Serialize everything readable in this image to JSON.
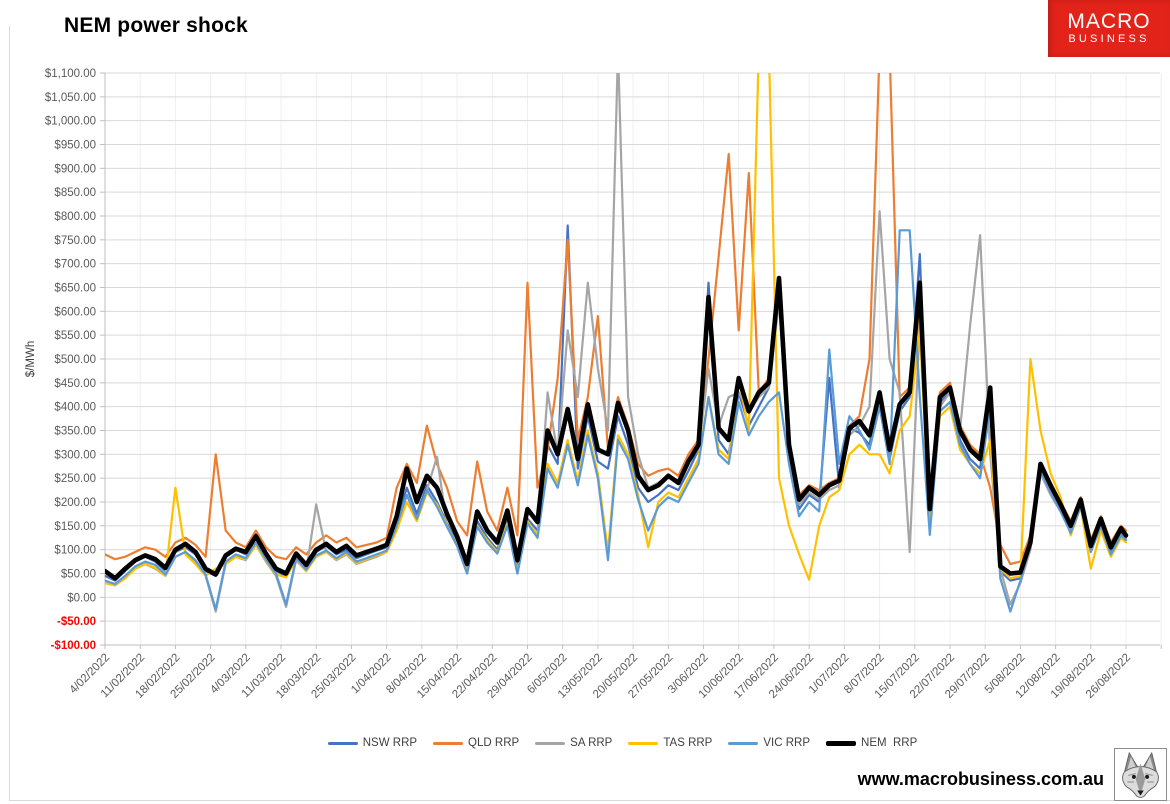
{
  "page": {
    "footer_url": "www.macrobusiness.com.au"
  },
  "logo": {
    "line1": "MACRO",
    "line2": "BUSINESS",
    "bg_color": "#e2231a",
    "text_color": "#ffffff"
  },
  "chart_data": {
    "type": "line",
    "title": "NEM power shock",
    "ylabel": "$/MWh",
    "ylim": [
      -100,
      1100
    ],
    "ytick_step": 50,
    "grid": true,
    "legend_position": "bottom",
    "axis_label_color": "#595959",
    "negative_tick_color": "#ff0000",
    "gridline_color": "#d9d9d9",
    "vertical_gridline_color": "#efefef",
    "ytick_labels": [
      "$1,100.00",
      "$1,050.00",
      "$1,000.00",
      "$950.00",
      "$900.00",
      "$850.00",
      "$800.00",
      "$750.00",
      "$700.00",
      "$650.00",
      "$600.00",
      "$550.00",
      "$500.00",
      "$450.00",
      "$400.00",
      "$350.00",
      "$300.00",
      "$250.00",
      "$200.00",
      "$150.00",
      "$100.00",
      "$50.00",
      "$0.00",
      "-$50.00",
      "-$100.00"
    ],
    "x_tick_labels": [
      "4/02/2022",
      "11/02/2022",
      "18/02/2022",
      "25/02/2022",
      "4/03/2022",
      "11/03/2022",
      "18/03/2022",
      "25/03/2022",
      "1/04/2022",
      "8/04/2022",
      "15/04/2022",
      "22/04/2022",
      "29/04/2022",
      "6/05/2022",
      "13/05/2022",
      "20/05/2022",
      "27/05/2022",
      "3/06/2022",
      "10/06/2022",
      "17/06/2022",
      "24/06/2022",
      "1/07/2022",
      "8/07/2022",
      "15/07/2022",
      "22/07/2022",
      "29/07/2022",
      "5/08/2022",
      "12/08/2022",
      "19/08/2022",
      "26/08/2022"
    ],
    "total_days": 203,
    "x_days": [
      0,
      2,
      4,
      6,
      8,
      10,
      12,
      14,
      16,
      18,
      20,
      22,
      24,
      26,
      28,
      30,
      32,
      34,
      36,
      38,
      40,
      42,
      44,
      46,
      48,
      50,
      52,
      54,
      56,
      58,
      60,
      62,
      64,
      66,
      68,
      70,
      72,
      74,
      76,
      78,
      80,
      82,
      84,
      86,
      88,
      90,
      92,
      94,
      96,
      98,
      100,
      102,
      104,
      106,
      108,
      110,
      112,
      114,
      116,
      118,
      120,
      122,
      124,
      126,
      128,
      130,
      132,
      134,
      136,
      138,
      140,
      142,
      144,
      146,
      148,
      150,
      152,
      154,
      156,
      158,
      160,
      162,
      164,
      166,
      168,
      170,
      172,
      174,
      176,
      178,
      180,
      182,
      184,
      186,
      188,
      190,
      192,
      194,
      196,
      198,
      200,
      202,
      203
    ],
    "series": [
      {
        "name": "NSW RRP",
        "color": "#4472C4",
        "width": 2.2,
        "values": [
          45,
          35,
          55,
          75,
          85,
          75,
          55,
          95,
          105,
          90,
          55,
          45,
          85,
          100,
          90,
          135,
          88,
          55,
          45,
          88,
          62,
          95,
          108,
          90,
          100,
          82,
          90,
          98,
          105,
          160,
          230,
          175,
          235,
          200,
          155,
          115,
          60,
          160,
          125,
          100,
          165,
          60,
          165,
          140,
          320,
          280,
          780,
          270,
          380,
          285,
          270,
          380,
          320,
          230,
          200,
          215,
          235,
          225,
          265,
          310,
          660,
          330,
          300,
          430,
          360,
          400,
          440,
          640,
          290,
          185,
          215,
          200,
          460,
          230,
          355,
          345,
          320,
          430,
          290,
          390,
          420,
          720,
          170,
          410,
          430,
          330,
          290,
          270,
          420,
          55,
          35,
          40,
          105,
          270,
          225,
          185,
          140,
          195,
          100,
          155,
          95,
          135,
          125
        ]
      },
      {
        "name": "QLD RRP",
        "color": "#ED7D31",
        "width": 2.2,
        "values": [
          90,
          80,
          85,
          95,
          105,
          100,
          85,
          115,
          125,
          110,
          85,
          300,
          140,
          115,
          105,
          140,
          105,
          85,
          80,
          105,
          90,
          115,
          130,
          115,
          125,
          105,
          110,
          115,
          125,
          230,
          280,
          240,
          360,
          280,
          230,
          160,
          130,
          285,
          180,
          140,
          230,
          130,
          660,
          230,
          310,
          460,
          750,
          330,
          420,
          590,
          310,
          420,
          360,
          280,
          255,
          265,
          270,
          255,
          300,
          330,
          500,
          714,
          930,
          560,
          890,
          430,
          460,
          660,
          330,
          215,
          235,
          225,
          240,
          250,
          360,
          380,
          500,
          1150,
          1150,
          420,
          440,
          600,
          200,
          430,
          450,
          360,
          320,
          300,
          230,
          110,
          70,
          75,
          130,
          260,
          220,
          200,
          160,
          210,
          120,
          170,
          115,
          150,
          140
        ]
      },
      {
        "name": "SA RRP",
        "color": "#A5A5A5",
        "width": 2.2,
        "values": [
          30,
          25,
          40,
          60,
          70,
          60,
          45,
          85,
          95,
          75,
          45,
          -30,
          70,
          85,
          78,
          110,
          75,
          45,
          -20,
          78,
          55,
          195,
          95,
          78,
          90,
          70,
          78,
          85,
          95,
          150,
          215,
          165,
          225,
          295,
          150,
          108,
          50,
          150,
          115,
          92,
          152,
          50,
          158,
          128,
          430,
          300,
          560,
          420,
          660,
          480,
          350,
          1150,
          420,
          300,
          230,
          240,
          255,
          245,
          285,
          310,
          480,
          360,
          420,
          430,
          390,
          420,
          440,
          620,
          300,
          195,
          220,
          205,
          225,
          235,
          340,
          360,
          400,
          810,
          500,
          430,
          95,
          580,
          160,
          400,
          430,
          350,
          570,
          760,
          300,
          60,
          -15,
          30,
          100,
          260,
          215,
          180,
          140,
          190,
          95,
          150,
          90,
          130,
          120
        ]
      },
      {
        "name": "TAS RRP",
        "color": "#FFC000",
        "width": 2.2,
        "values": [
          30,
          25,
          40,
          60,
          70,
          62,
          45,
          230,
          90,
          70,
          45,
          60,
          70,
          85,
          80,
          110,
          78,
          48,
          42,
          80,
          55,
          85,
          95,
          80,
          92,
          72,
          80,
          88,
          95,
          140,
          200,
          160,
          220,
          195,
          150,
          110,
          55,
          150,
          120,
          95,
          155,
          55,
          160,
          130,
          280,
          240,
          330,
          245,
          350,
          260,
          95,
          340,
          300,
          215,
          105,
          200,
          220,
          210,
          250,
          290,
          420,
          310,
          290,
          460,
          350,
          1150,
          1150,
          250,
          150,
          90,
          37,
          150,
          210,
          225,
          300,
          320,
          300,
          300,
          260,
          350,
          380,
          560,
          150,
          380,
          400,
          310,
          280,
          260,
          330,
          60,
          40,
          45,
          500,
          350,
          260,
          210,
          130,
          190,
          60,
          140,
          85,
          125,
          115
        ]
      },
      {
        "name": "VIC RRP",
        "color": "#5B9BD5",
        "width": 2.2,
        "values": [
          35,
          28,
          45,
          65,
          75,
          68,
          48,
          85,
          95,
          78,
          48,
          -25,
          75,
          90,
          82,
          115,
          80,
          50,
          -15,
          82,
          58,
          88,
          98,
          82,
          95,
          75,
          82,
          90,
          98,
          150,
          215,
          165,
          225,
          190,
          148,
          108,
          50,
          148,
          115,
          92,
          150,
          50,
          155,
          125,
          270,
          230,
          320,
          235,
          340,
          250,
          78,
          330,
          290,
          205,
          140,
          190,
          210,
          200,
          240,
          280,
          420,
          300,
          280,
          410,
          340,
          380,
          410,
          430,
          280,
          170,
          200,
          180,
          520,
          280,
          380,
          350,
          310,
          400,
          280,
          770,
          770,
          420,
          131,
          390,
          410,
          320,
          280,
          250,
          400,
          40,
          -30,
          35,
          110,
          265,
          220,
          180,
          135,
          190,
          95,
          150,
          90,
          130,
          120
        ]
      },
      {
        "name": "NEM  RRP",
        "color": "#000000",
        "width": 4.6,
        "values": [
          55,
          40,
          60,
          78,
          88,
          80,
          62,
          100,
          112,
          95,
          60,
          48,
          88,
          102,
          95,
          128,
          92,
          60,
          50,
          92,
          68,
          100,
          112,
          95,
          108,
          88,
          95,
          102,
          110,
          170,
          270,
          200,
          255,
          230,
          175,
          128,
          70,
          180,
          140,
          115,
          182,
          78,
          185,
          158,
          350,
          300,
          395,
          290,
          405,
          310,
          300,
          408,
          350,
          255,
          225,
          235,
          255,
          240,
          285,
          320,
          630,
          355,
          330,
          460,
          390,
          430,
          450,
          670,
          320,
          205,
          230,
          215,
          235,
          245,
          355,
          370,
          340,
          430,
          310,
          405,
          430,
          660,
          185,
          420,
          440,
          350,
          310,
          290,
          440,
          65,
          50,
          52,
          115,
          280,
          235,
          195,
          150,
          205,
          108,
          165,
          105,
          145,
          130
        ]
      }
    ]
  }
}
